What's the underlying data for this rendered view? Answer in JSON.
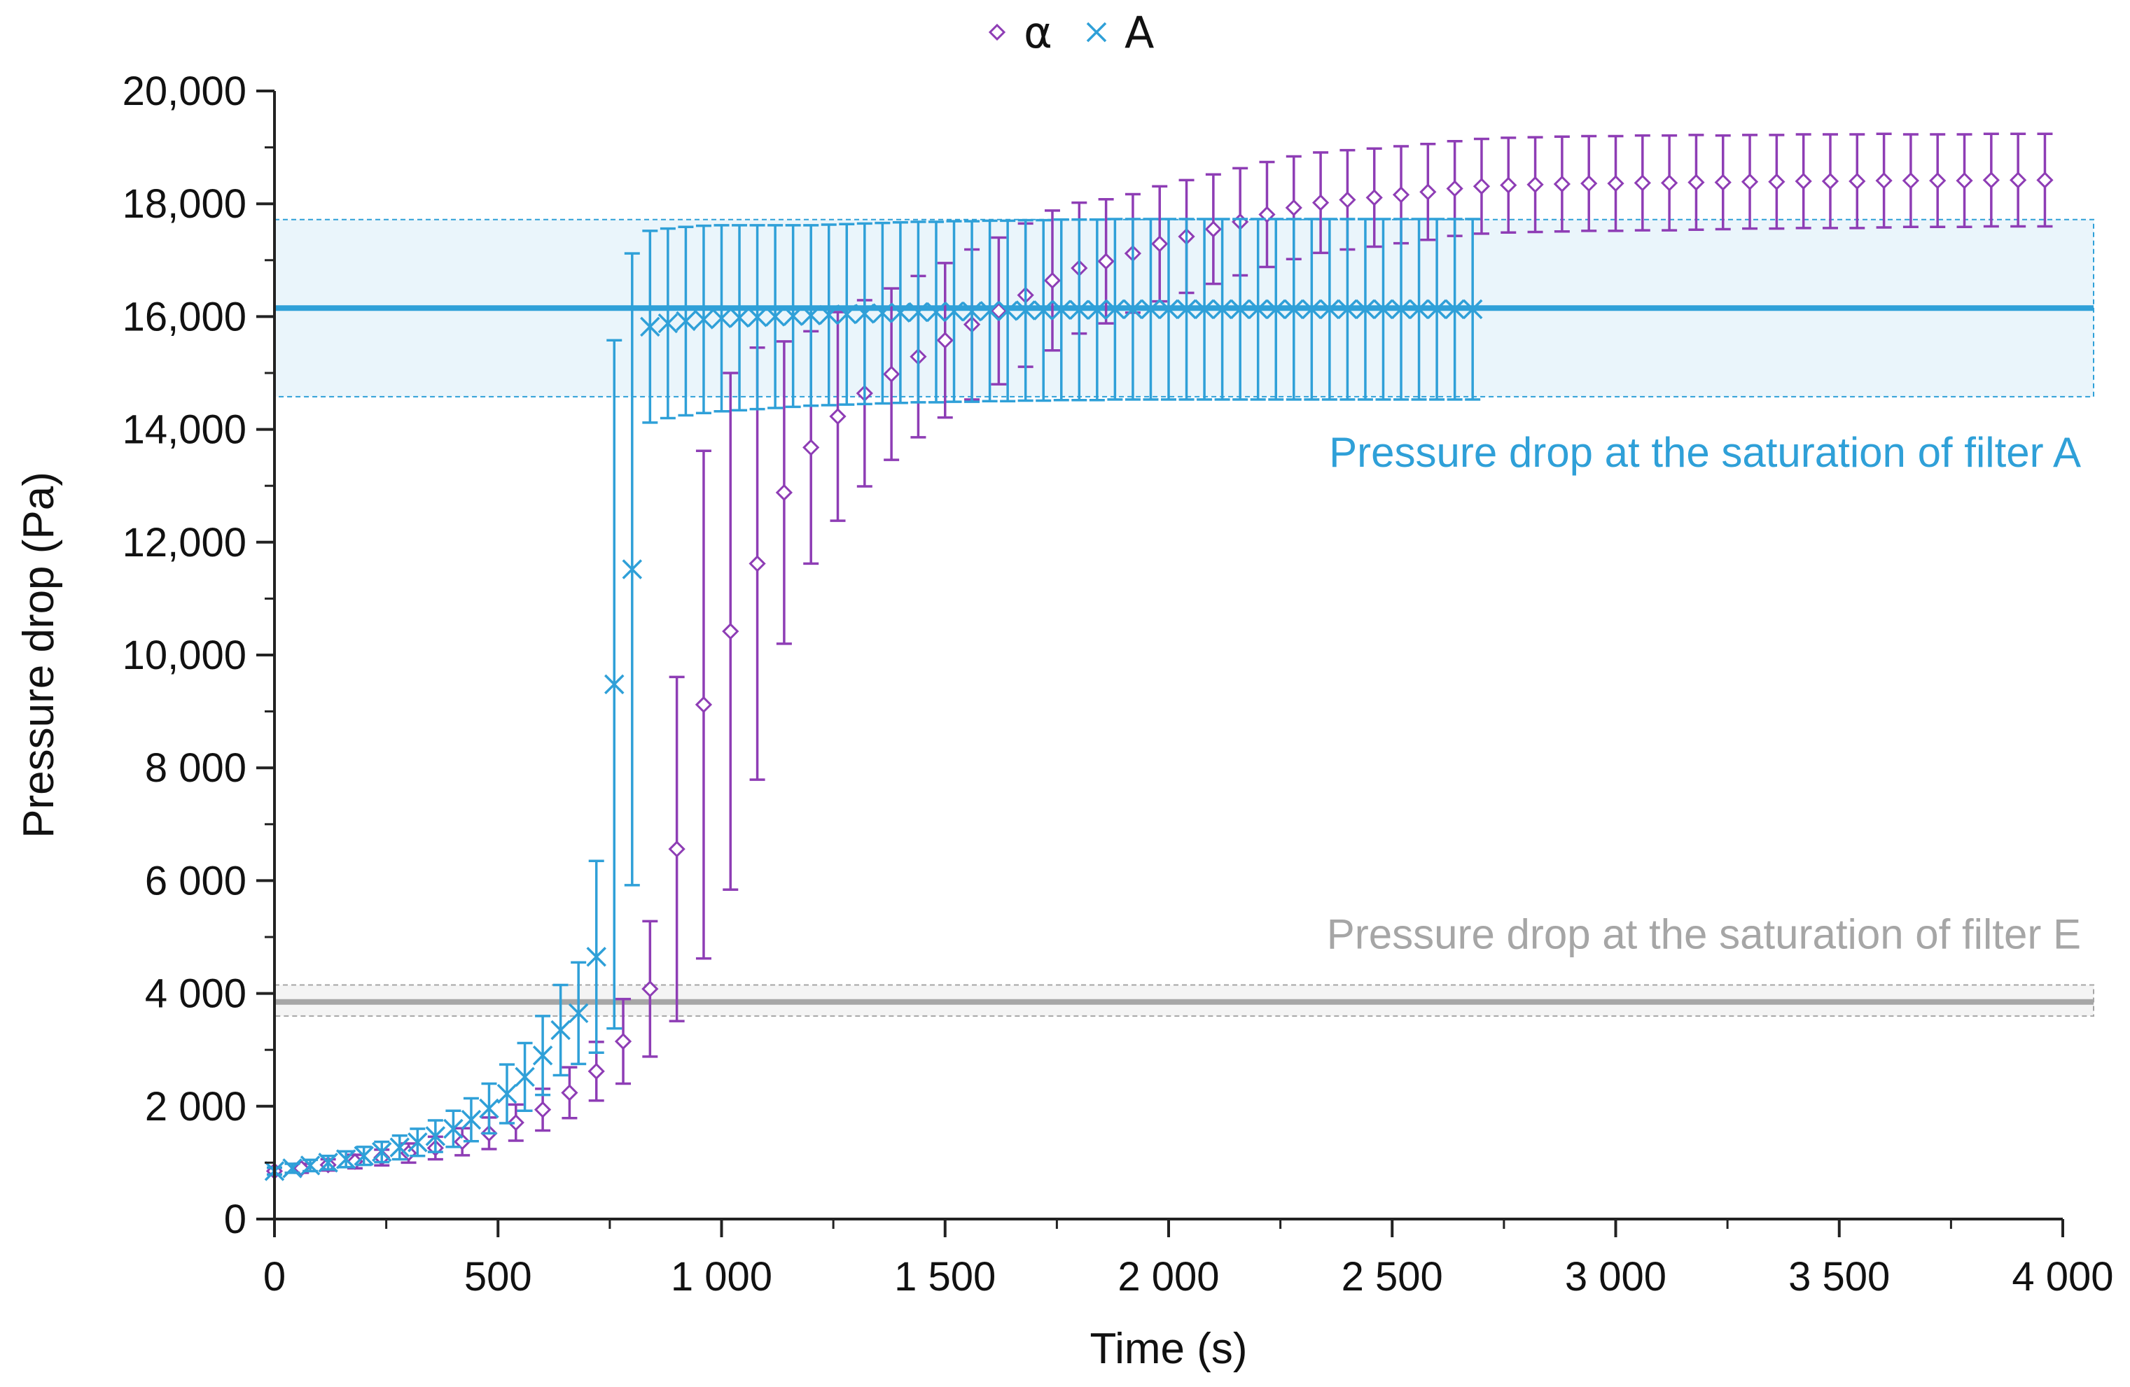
{
  "chart_data": {
    "type": "scatter",
    "title": "",
    "xlabel": "Time (s)",
    "ylabel": "Pressure drop (Pa)",
    "xlim": [
      0,
      4000
    ],
    "ylim": [
      0,
      20000
    ],
    "x_ticks": [
      0,
      500,
      1000,
      1500,
      2000,
      2500,
      3000,
      3500,
      4000
    ],
    "x_tick_labels": [
      "0",
      "500",
      "1 000",
      "1 500",
      "2 000",
      "2 500",
      "3 000",
      "3 500",
      "4 000"
    ],
    "y_ticks": [
      0,
      2000,
      4000,
      6000,
      8000,
      10000,
      12000,
      14000,
      16000,
      18000,
      20000
    ],
    "y_tick_labels": [
      "0",
      "2 000",
      "4 000",
      "6 000",
      "8 000",
      "10,000",
      "12,000",
      "14,000",
      "16,000",
      "18,000",
      "20,000"
    ],
    "grid": false,
    "legend_position": "top-center",
    "series": [
      {
        "name": "α",
        "marker": "diamond-open",
        "color": "#8E3DB5",
        "x": [
          0,
          60,
          120,
          180,
          240,
          300,
          360,
          420,
          480,
          540,
          600,
          660,
          720,
          780,
          840,
          900,
          960,
          1020,
          1080,
          1140,
          1200,
          1260,
          1320,
          1380,
          1440,
          1500,
          1560,
          1620,
          1680,
          1740,
          1800,
          1860,
          1920,
          1980,
          2040,
          2100,
          2160,
          2220,
          2280,
          2340,
          2400,
          2460,
          2520,
          2580,
          2640,
          2700,
          2760,
          2820,
          2880,
          2940,
          3000,
          3060,
          3120,
          3180,
          3240,
          3300,
          3360,
          3420,
          3480,
          3540,
          3600,
          3660,
          3720,
          3780,
          3840,
          3900,
          3960
        ],
        "y": [
          850,
          900,
          960,
          1020,
          1090,
          1170,
          1260,
          1370,
          1520,
          1710,
          1940,
          2240,
          2620,
          3150,
          4080,
          6560,
          9120,
          10420,
          11620,
          12880,
          13680,
          14230,
          14640,
          14980,
          15290,
          15580,
          15860,
          16100,
          16380,
          16640,
          16860,
          16980,
          17120,
          17290,
          17420,
          17550,
          17680,
          17810,
          17930,
          18020,
          18070,
          18110,
          18160,
          18210,
          18270,
          18310,
          18330,
          18340,
          18350,
          18360,
          18360,
          18370,
          18370,
          18380,
          18380,
          18390,
          18390,
          18400,
          18400,
          18400,
          18410,
          18410,
          18410,
          18410,
          18420,
          18420,
          18420
        ],
        "err": [
          60,
          80,
          100,
          120,
          140,
          170,
          200,
          240,
          280,
          320,
          370,
          450,
          520,
          750,
          1200,
          3050,
          4500,
          4580,
          3830,
          2680,
          2060,
          1850,
          1650,
          1520,
          1430,
          1370,
          1330,
          1300,
          1270,
          1240,
          1160,
          1100,
          1050,
          1020,
          1000,
          970,
          950,
          930,
          910,
          890,
          880,
          870,
          860,
          850,
          840,
          840,
          840,
          840,
          840,
          840,
          840,
          840,
          840,
          840,
          830,
          830,
          830,
          830,
          830,
          830,
          830,
          820,
          820,
          820,
          820,
          820,
          820
        ]
      },
      {
        "name": "A",
        "marker": "x",
        "color": "#2FA0D8",
        "x": [
          0,
          40,
          80,
          120,
          160,
          200,
          240,
          280,
          320,
          360,
          400,
          440,
          480,
          520,
          560,
          600,
          640,
          680,
          720,
          760,
          800,
          840,
          880,
          920,
          960,
          1000,
          1040,
          1080,
          1120,
          1160,
          1200,
          1240,
          1280,
          1320,
          1360,
          1400,
          1440,
          1480,
          1520,
          1560,
          1600,
          1640,
          1680,
          1720,
          1760,
          1800,
          1840,
          1880,
          1920,
          1960,
          2000,
          2040,
          2080,
          2120,
          2160,
          2200,
          2240,
          2280,
          2320,
          2360,
          2400,
          2440,
          2480,
          2520,
          2560,
          2600,
          2640,
          2680
        ],
        "y": [
          850,
          900,
          950,
          1000,
          1060,
          1120,
          1190,
          1270,
          1360,
          1470,
          1600,
          1760,
          1960,
          2220,
          2520,
          2900,
          3350,
          3650,
          4650,
          9480,
          11520,
          15820,
          15880,
          15920,
          15950,
          15970,
          15980,
          15990,
          16000,
          16010,
          16020,
          16030,
          16040,
          16050,
          16060,
          16070,
          16080,
          16080,
          16090,
          16090,
          16100,
          16100,
          16110,
          16110,
          16120,
          16120,
          16120,
          16130,
          16130,
          16130,
          16130,
          16130,
          16130,
          16130,
          16130,
          16130,
          16130,
          16130,
          16130,
          16130,
          16130,
          16130,
          16130,
          16130,
          16130,
          16130,
          16130,
          16130
        ],
        "err": [
          60,
          80,
          100,
          120,
          140,
          160,
          180,
          210,
          240,
          280,
          320,
          380,
          440,
          520,
          600,
          700,
          800,
          900,
          1700,
          6100,
          5600,
          1700,
          1680,
          1670,
          1660,
          1650,
          1640,
          1630,
          1620,
          1610,
          1600,
          1600,
          1600,
          1600,
          1600,
          1600,
          1600,
          1600,
          1600,
          1600,
          1600,
          1600,
          1600,
          1600,
          1600,
          1600,
          1600,
          1600,
          1600,
          1600,
          1600,
          1600,
          1600,
          1600,
          1600,
          1600,
          1600,
          1600,
          1600,
          1600,
          1600,
          1600,
          1600,
          1600,
          1600,
          1600,
          1600,
          1600
        ]
      }
    ],
    "reference_bands": [
      {
        "label": "Pressure drop at the saturation of filter A",
        "value": 16150,
        "low": 14580,
        "high": 17720,
        "color": "#2FA0D8",
        "fill": "#EAF5FB"
      },
      {
        "label": "Pressure drop at the saturation of filter E",
        "value": 3850,
        "low": 3600,
        "high": 4150,
        "color": "#A6A6A6",
        "fill": "#F4F4F4"
      }
    ]
  }
}
